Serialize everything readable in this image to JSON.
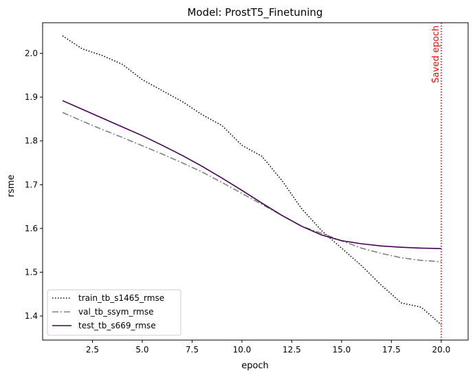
{
  "chart_data": {
    "type": "line",
    "title": "Model: ProstT5_Finetuning",
    "xlabel": "epoch",
    "ylabel": "rsme",
    "xlim": [
      0.0,
      21.35
    ],
    "ylim": [
      1.345,
      2.07
    ],
    "x_ticks": [
      2.5,
      5.0,
      7.5,
      10.0,
      12.5,
      15.0,
      17.5,
      20.0
    ],
    "x_tick_labels": [
      "2.5",
      "5.0",
      "7.5",
      "10.0",
      "12.5",
      "15.0",
      "17.5",
      "20.0"
    ],
    "y_ticks": [
      1.4,
      1.5,
      1.6,
      1.7,
      1.8,
      1.9,
      2.0
    ],
    "y_tick_labels": [
      "1.4",
      "1.5",
      "1.6",
      "1.7",
      "1.8",
      "1.9",
      "2.0"
    ],
    "grid": false,
    "legend_position": "lower-left",
    "x": [
      1,
      2,
      3,
      4,
      5,
      6,
      7,
      8,
      9,
      10,
      11,
      12,
      13,
      14,
      15,
      16,
      17,
      18,
      19,
      20
    ],
    "series": [
      {
        "name": "train_tb_s1465_rmse",
        "color": "#000000",
        "style": "dotted",
        "values": [
          2.04,
          2.01,
          1.995,
          1.975,
          1.94,
          1.915,
          1.89,
          1.86,
          1.835,
          1.79,
          1.765,
          1.71,
          1.645,
          1.595,
          1.555,
          1.515,
          1.47,
          1.43,
          1.42,
          1.38
        ]
      },
      {
        "name": "val_tb_ssym_rmse",
        "color": "#808080",
        "style": "dashdot",
        "values": [
          1.865,
          1.845,
          1.826,
          1.808,
          1.789,
          1.77,
          1.75,
          1.729,
          1.705,
          1.68,
          1.655,
          1.63,
          1.605,
          1.589,
          1.572,
          1.555,
          1.543,
          1.533,
          1.527,
          1.524
        ]
      },
      {
        "name": "test_tb_s669_rmse",
        "color": "#440154",
        "style": "solid",
        "values": [
          1.892,
          1.872,
          1.852,
          1.832,
          1.812,
          1.79,
          1.767,
          1.742,
          1.715,
          1.687,
          1.658,
          1.63,
          1.605,
          1.585,
          1.572,
          1.565,
          1.56,
          1.557,
          1.555,
          1.554
        ]
      }
    ],
    "annotations": [
      {
        "text": "Saved epoch",
        "x": 20,
        "color": "#ff0000",
        "line_style": "dotted",
        "orientation": "vertical"
      }
    ]
  }
}
